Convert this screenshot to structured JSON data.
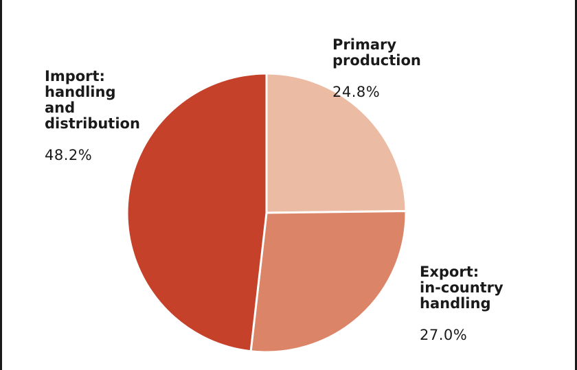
{
  "chart_data": {
    "type": "pie",
    "title": "",
    "slices": [
      {
        "label": "Primary\nproduction",
        "value": 24.8,
        "display_value": "24.8%",
        "color": "#EBBBA4"
      },
      {
        "label": "Export:\nin-country\nhandling",
        "value": 27.0,
        "display_value": "27.0%",
        "color": "#DB8467"
      },
      {
        "label": "Import:\nhandling\nand\ndistribution",
        "value": 48.2,
        "display_value": "48.2%",
        "color": "#C5412A"
      }
    ],
    "start": "12 o'clock",
    "direction": "clockwise",
    "legend": "none"
  }
}
